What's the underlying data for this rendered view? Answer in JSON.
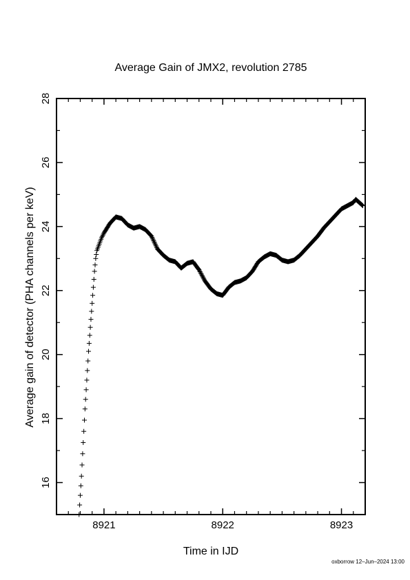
{
  "chart_data": {
    "type": "scatter",
    "title": "Average Gain of JMX2, revolution 2785",
    "xlabel": "Time in IJD",
    "ylabel": "Average gain of detector (PHA channels per keV)",
    "xlim": [
      8920.6,
      8923.2
    ],
    "ylim": [
      15,
      28
    ],
    "xticks": [
      8921,
      8922,
      8923
    ],
    "yticks": [
      16,
      18,
      20,
      22,
      24,
      26,
      28
    ],
    "marker": "plus",
    "footer": "oxborrow 12–Jun–2024 13:00",
    "series": [
      {
        "points": [
          [
            8920.79,
            15.0
          ],
          [
            8920.8,
            15.6
          ],
          [
            8920.81,
            16.2
          ],
          [
            8920.82,
            16.9
          ],
          [
            8920.83,
            17.6
          ],
          [
            8920.84,
            18.3
          ],
          [
            8920.85,
            18.9
          ],
          [
            8920.86,
            19.5
          ],
          [
            8920.87,
            20.1
          ],
          [
            8920.88,
            20.6
          ],
          [
            8920.89,
            21.1
          ],
          [
            8920.9,
            21.6
          ],
          [
            8920.91,
            22.1
          ],
          [
            8920.92,
            22.6
          ],
          [
            8920.93,
            23.0
          ],
          [
            8920.94,
            23.25
          ],
          [
            8920.96,
            23.45
          ],
          [
            8920.98,
            23.65
          ],
          [
            8921.0,
            23.8
          ],
          [
            8921.05,
            24.1
          ],
          [
            8921.1,
            24.3
          ],
          [
            8921.15,
            24.25
          ],
          [
            8921.2,
            24.05
          ],
          [
            8921.25,
            23.95
          ],
          [
            8921.3,
            24.0
          ],
          [
            8921.35,
            23.9
          ],
          [
            8921.4,
            23.7
          ],
          [
            8921.45,
            23.3
          ],
          [
            8921.5,
            23.1
          ],
          [
            8921.55,
            22.95
          ],
          [
            8921.6,
            22.9
          ],
          [
            8921.65,
            22.7
          ],
          [
            8921.7,
            22.85
          ],
          [
            8921.75,
            22.9
          ],
          [
            8921.8,
            22.65
          ],
          [
            8921.85,
            22.3
          ],
          [
            8921.9,
            22.05
          ],
          [
            8921.95,
            21.9
          ],
          [
            8922.0,
            21.85
          ],
          [
            8922.05,
            22.1
          ],
          [
            8922.1,
            22.25
          ],
          [
            8922.15,
            22.3
          ],
          [
            8922.2,
            22.4
          ],
          [
            8922.25,
            22.6
          ],
          [
            8922.3,
            22.9
          ],
          [
            8922.35,
            23.05
          ],
          [
            8922.4,
            23.15
          ],
          [
            8922.45,
            23.1
          ],
          [
            8922.5,
            22.95
          ],
          [
            8922.55,
            22.9
          ],
          [
            8922.6,
            22.95
          ],
          [
            8922.65,
            23.1
          ],
          [
            8922.7,
            23.3
          ],
          [
            8922.75,
            23.5
          ],
          [
            8922.8,
            23.7
          ],
          [
            8922.85,
            23.95
          ],
          [
            8922.9,
            24.15
          ],
          [
            8922.95,
            24.35
          ],
          [
            8923.0,
            24.55
          ],
          [
            8923.05,
            24.65
          ],
          [
            8923.1,
            24.75
          ],
          [
            8923.12,
            24.85
          ],
          [
            8923.15,
            24.75
          ],
          [
            8923.18,
            24.65
          ]
        ]
      }
    ]
  }
}
